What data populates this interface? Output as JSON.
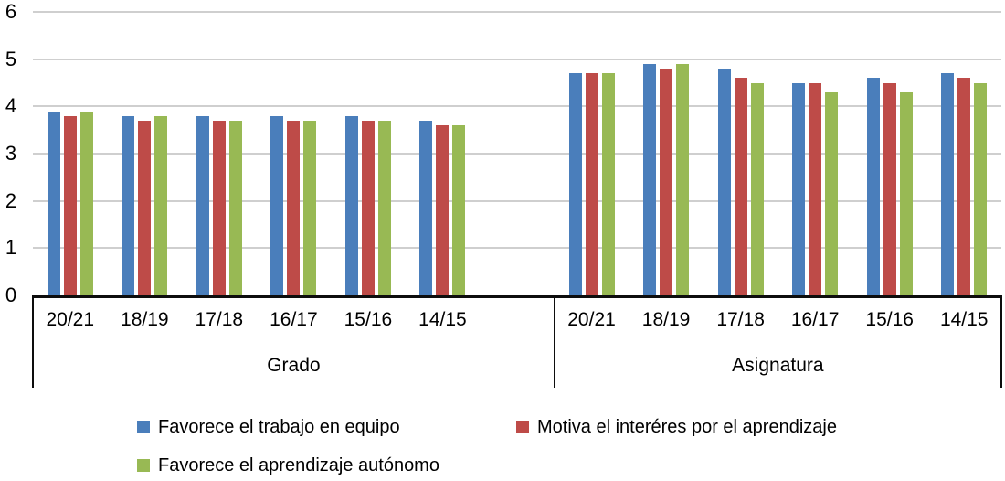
{
  "chart_data": {
    "type": "bar",
    "title": "",
    "xlabel": "",
    "ylabel": "",
    "ylim": [
      0,
      6
    ],
    "yticks": [
      0,
      1,
      2,
      3,
      4,
      5,
      6
    ],
    "grid": true,
    "legend_position": "bottom",
    "axis_color": "#0d0d0d",
    "gridline_color": "#cfcfcf",
    "groups": [
      {
        "label": "Grado",
        "categories": [
          "20/21",
          "18/19",
          "17/18",
          "16/17",
          "15/16",
          "14/15"
        ]
      },
      {
        "label": "Asignatura",
        "categories": [
          "20/21",
          "18/19",
          "17/18",
          "16/17",
          "15/16",
          "14/15"
        ]
      }
    ],
    "series": [
      {
        "name": "Favorece el trabajo en equipo",
        "color": "#4a7ebb",
        "values": [
          [
            3.9,
            3.8,
            3.8,
            3.8,
            3.8,
            3.7
          ],
          [
            4.7,
            4.9,
            4.8,
            4.5,
            4.6,
            4.7
          ]
        ]
      },
      {
        "name": "Motiva el interéres por el aprendizaje",
        "color": "#be4b48",
        "values": [
          [
            3.8,
            3.7,
            3.7,
            3.7,
            3.7,
            3.6
          ],
          [
            4.7,
            4.8,
            4.6,
            4.5,
            4.5,
            4.6
          ]
        ]
      },
      {
        "name": "Favorece el aprendizaje autónomo",
        "color": "#98b954",
        "values": [
          [
            3.9,
            3.8,
            3.7,
            3.7,
            3.7,
            3.6
          ],
          [
            4.7,
            4.9,
            4.5,
            4.3,
            4.3,
            4.5
          ]
        ]
      }
    ]
  }
}
